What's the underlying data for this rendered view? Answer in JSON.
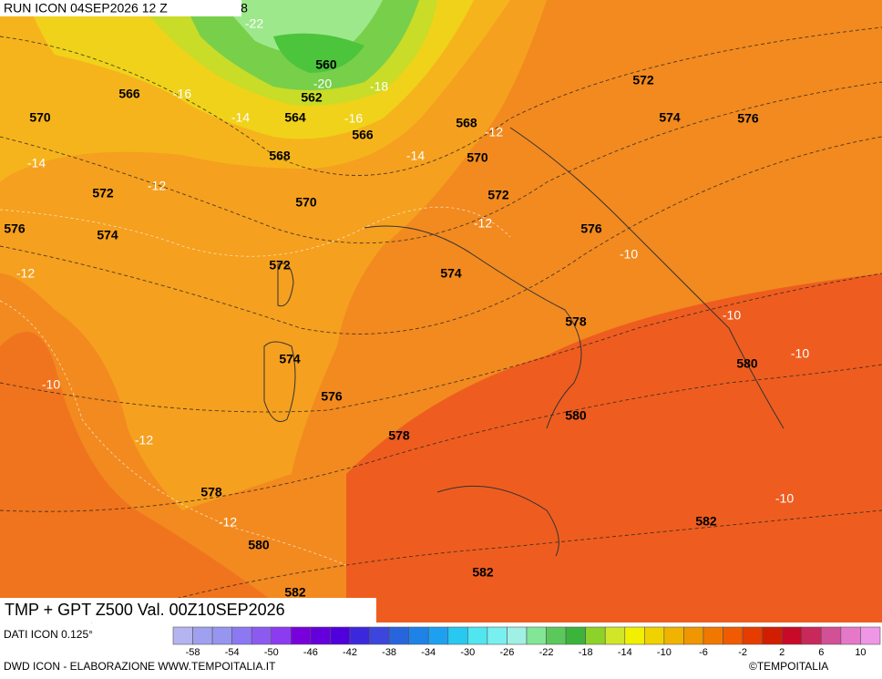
{
  "header": {
    "run": "RUN ICON 04SEP2026 12 Z",
    "corner": "8"
  },
  "title": "TMP + GPT Z500 Val. 00Z10SEP2026",
  "isohypse_labels": [
    566,
    570,
    572,
    574,
    576,
    572,
    574,
    576,
    578,
    580,
    582,
    578,
    580,
    582,
    582,
    580,
    578,
    576,
    574,
    572,
    570,
    568,
    566,
    564,
    562,
    560,
    568,
    570,
    572,
    574,
    576
  ],
  "isotherm_labels": [
    -22,
    -20,
    -18,
    -16,
    -16,
    -14,
    -14,
    -14,
    -12,
    -12,
    -12,
    -12,
    -10,
    -12,
    -12,
    -10,
    -10,
    -10,
    -10
  ],
  "colorbar": {
    "colors": [
      "#b4b4f0",
      "#a0a0f0",
      "#9696f0",
      "#8c78f0",
      "#8c5af0",
      "#8c3cf0",
      "#7800dc",
      "#6400dc",
      "#5000dc",
      "#3c28dc",
      "#3c46dc",
      "#2864dc",
      "#1e82e6",
      "#1ea0f0",
      "#28c8f0",
      "#50e6f0",
      "#78f0f0",
      "#a0f0e6",
      "#82e696",
      "#5ac85a",
      "#3cb43c",
      "#8cd228",
      "#d2e628",
      "#f0f000",
      "#f0d200",
      "#f0b400",
      "#f09600",
      "#f07800",
      "#f05a00",
      "#e63c00",
      "#d21e00",
      "#c80a28",
      "#c8285a",
      "#d25096",
      "#e678c8",
      "#f096e6"
    ],
    "labels": [
      -58,
      -54,
      -50,
      -46,
      -42,
      -38,
      -34,
      -30,
      -26,
      -22,
      -18,
      -14,
      -10,
      -6,
      -2,
      2,
      6,
      10
    ]
  },
  "footer": {
    "source": "DATI ICON 0.125°",
    "credits": "DWD ICON - ELABORAZIONE WWW.TEMPOITALIA.IT",
    "copyright": "©TEMPOITALIA"
  }
}
